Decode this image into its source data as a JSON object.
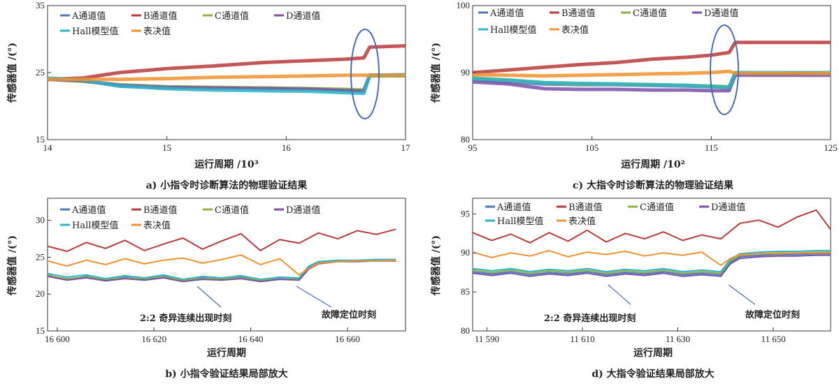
{
  "colors": {
    "A": "#4a78b8",
    "B": "#b93a3a",
    "C": "#8fb13e",
    "D": "#7b4fa8",
    "hall": "#2ab5c9",
    "vote": "#f0922e",
    "ellipse": "#4a6cb0"
  },
  "legend_labels": {
    "A": "A通道值",
    "B": "B通道值",
    "C": "C通道值",
    "D": "D通道值",
    "hall": "Hall模型值",
    "vote": "表决值"
  },
  "chart_data": [
    {
      "id": "a",
      "type": "line",
      "caption": "a)   小指令时诊断算法的物理验证结果",
      "ylabel": "传感器值 /(°)",
      "xlabel": "运行周期 /10³",
      "xlim": [
        14,
        17
      ],
      "ylim": [
        15,
        35
      ],
      "xticks": [
        "14",
        "15",
        "16",
        "17"
      ],
      "yticks": [
        "15",
        "25",
        "35"
      ],
      "ellipse": true,
      "series": [
        {
          "key": "B",
          "x": [
            14.0,
            14.3,
            14.6,
            15.0,
            15.4,
            15.8,
            16.2,
            16.5,
            16.65,
            16.7,
            17.0
          ],
          "y": [
            24.0,
            24.2,
            25.0,
            25.6,
            26.0,
            26.5,
            26.8,
            27.0,
            27.2,
            28.8,
            29.0
          ]
        },
        {
          "key": "A",
          "x": [
            14.0,
            14.3,
            14.6,
            15.0,
            15.4,
            15.8,
            16.2,
            16.5,
            16.65,
            16.7,
            17.0
          ],
          "y": [
            24.0,
            23.8,
            23.0,
            22.8,
            22.7,
            22.7,
            22.6,
            22.4,
            22.3,
            24.6,
            24.6
          ]
        },
        {
          "key": "C",
          "x": [
            14.0,
            14.3,
            14.6,
            15.0,
            15.4,
            15.8,
            16.2,
            16.5,
            16.65,
            16.7,
            17.0
          ],
          "y": [
            24.0,
            23.7,
            23.2,
            22.9,
            22.8,
            22.7,
            22.6,
            22.5,
            22.4,
            24.5,
            24.5
          ]
        },
        {
          "key": "D",
          "x": [
            14.0,
            14.3,
            14.6,
            15.0,
            15.4,
            15.8,
            16.2,
            16.5,
            16.65,
            16.7,
            17.0
          ],
          "y": [
            24.0,
            23.8,
            23.1,
            22.8,
            22.7,
            22.6,
            22.5,
            22.3,
            22.2,
            24.6,
            24.6
          ]
        },
        {
          "key": "hall",
          "x": [
            14.0,
            14.3,
            14.6,
            15.0,
            15.4,
            15.8,
            16.2,
            16.5,
            16.65,
            16.7,
            17.0
          ],
          "y": [
            24.2,
            23.9,
            23.0,
            22.6,
            22.4,
            22.3,
            22.2,
            22.0,
            21.9,
            24.6,
            24.7
          ]
        },
        {
          "key": "vote",
          "x": [
            14.0,
            14.3,
            14.6,
            15.0,
            15.4,
            15.8,
            16.2,
            16.5,
            16.65,
            16.7,
            17.0
          ],
          "y": [
            24.0,
            24.0,
            24.0,
            24.1,
            24.3,
            24.4,
            24.5,
            24.6,
            24.6,
            24.6,
            24.6
          ]
        }
      ]
    },
    {
      "id": "c",
      "type": "line",
      "caption": "c)   大指令时诊断算法的物理验证结果",
      "ylabel": "传感器值 /(°)",
      "xlabel": "运行周期 /10²",
      "xlim": [
        95,
        125
      ],
      "ylim": [
        80,
        100
      ],
      "xticks": [
        "95",
        "105",
        "115",
        "125"
      ],
      "yticks": [
        "80",
        "90",
        "100"
      ],
      "ellipse": true,
      "series": [
        {
          "key": "B",
          "x": [
            95,
            98,
            101,
            104,
            107,
            110,
            113,
            115,
            116.5,
            117,
            125
          ],
          "y": [
            90.0,
            90.4,
            90.8,
            91.2,
            91.5,
            92.0,
            92.3,
            92.6,
            93.0,
            94.5,
            94.5
          ]
        },
        {
          "key": "A",
          "x": [
            95,
            98,
            101,
            104,
            107,
            110,
            113,
            115,
            116.5,
            117,
            125
          ],
          "y": [
            89.0,
            88.6,
            88.3,
            88.2,
            88.2,
            88.1,
            88.0,
            87.9,
            87.8,
            89.8,
            89.9
          ]
        },
        {
          "key": "C",
          "x": [
            95,
            98,
            101,
            104,
            107,
            110,
            113,
            115,
            116.5,
            117,
            125
          ],
          "y": [
            89.2,
            88.9,
            88.5,
            88.3,
            88.3,
            88.2,
            88.1,
            88.0,
            87.9,
            89.9,
            89.9
          ]
        },
        {
          "key": "D",
          "x": [
            95,
            98,
            101,
            104,
            107,
            110,
            113,
            115,
            116.5,
            117,
            125
          ],
          "y": [
            88.6,
            88.3,
            87.6,
            87.5,
            87.5,
            87.4,
            87.4,
            87.3,
            87.3,
            89.6,
            89.6
          ]
        },
        {
          "key": "hall",
          "x": [
            95,
            98,
            101,
            104,
            107,
            110,
            113,
            115,
            116.5,
            117,
            125
          ],
          "y": [
            89.1,
            88.9,
            88.5,
            88.4,
            88.3,
            88.2,
            88.1,
            87.9,
            87.8,
            90.0,
            90.0
          ]
        },
        {
          "key": "vote",
          "x": [
            95,
            98,
            101,
            104,
            107,
            110,
            113,
            115,
            116.5,
            117,
            125
          ],
          "y": [
            89.7,
            89.6,
            89.5,
            89.6,
            89.7,
            89.8,
            89.9,
            90.0,
            90.2,
            89.9,
            89.9
          ]
        }
      ]
    },
    {
      "id": "b",
      "type": "line",
      "caption": "b)   小指令验证结果局部放大",
      "ylabel": "传感器值 /(°)",
      "xlabel": "运行周期",
      "xlim": [
        16598,
        16672
      ],
      "ylim": [
        15,
        33
      ],
      "xticks": [
        "16 600",
        "16 620",
        "16 640",
        "16 660"
      ],
      "xtick_values": [
        16600,
        16620,
        16640,
        16660
      ],
      "yticks": [
        "15",
        "20",
        "25",
        "30"
      ],
      "annotations": [
        "2:2 奇异连续出现时刻",
        "故障定位时刻"
      ],
      "series": [
        {
          "key": "B",
          "x": [
            16598,
            16602,
            16606,
            16610,
            16614,
            16618,
            16622,
            16626,
            16630,
            16634,
            16638,
            16642,
            16646,
            16650,
            16654,
            16658,
            16662,
            16666,
            16670
          ],
          "y": [
            26.5,
            25.8,
            27.0,
            26.2,
            27.3,
            25.9,
            26.8,
            27.6,
            26.1,
            27.2,
            28.2,
            25.9,
            27.4,
            26.9,
            28.3,
            27.5,
            28.6,
            28.1,
            28.8
          ]
        },
        {
          "key": "A",
          "x": [
            16598,
            16602,
            16606,
            16610,
            16614,
            16618,
            16622,
            16626,
            16630,
            16634,
            16638,
            16642,
            16646,
            16650,
            16652,
            16654,
            16658,
            16662,
            16666,
            16670
          ],
          "y": [
            22.6,
            22.0,
            22.4,
            21.9,
            22.3,
            22.0,
            22.4,
            21.8,
            22.2,
            22.0,
            22.3,
            21.8,
            22.1,
            22.0,
            23.6,
            24.2,
            24.4,
            24.5,
            24.5,
            24.6
          ]
        },
        {
          "key": "C",
          "x": [
            16598,
            16602,
            16606,
            16610,
            16614,
            16618,
            16622,
            16626,
            16630,
            16634,
            16638,
            16642,
            16646,
            16650,
            16652,
            16654,
            16658,
            16662,
            16666,
            16670
          ],
          "y": [
            22.5,
            22.1,
            22.3,
            22.0,
            22.2,
            22.1,
            22.3,
            21.9,
            22.1,
            22.1,
            22.2,
            21.9,
            22.0,
            22.1,
            23.5,
            24.3,
            24.5,
            24.5,
            24.6,
            24.6
          ]
        },
        {
          "key": "D",
          "x": [
            16598,
            16602,
            16606,
            16610,
            16614,
            16618,
            16622,
            16626,
            16630,
            16634,
            16638,
            16642,
            16646,
            16650,
            16652,
            16654,
            16658,
            16662,
            16666,
            16670
          ],
          "y": [
            22.4,
            21.9,
            22.2,
            21.8,
            22.1,
            21.9,
            22.2,
            21.7,
            22.0,
            21.9,
            22.1,
            21.7,
            22.0,
            21.9,
            23.4,
            24.1,
            24.4,
            24.4,
            24.5,
            24.5
          ]
        },
        {
          "key": "hall",
          "x": [
            16598,
            16602,
            16606,
            16610,
            16614,
            16618,
            16622,
            16626,
            16630,
            16634,
            16638,
            16642,
            16646,
            16650,
            16652,
            16654,
            16658,
            16662,
            16666,
            16670
          ],
          "y": [
            22.8,
            22.3,
            22.6,
            22.1,
            22.5,
            22.2,
            22.6,
            22.0,
            22.4,
            22.2,
            22.5,
            22.0,
            22.3,
            22.2,
            23.8,
            24.4,
            24.6,
            24.6,
            24.7,
            24.7
          ]
        },
        {
          "key": "vote",
          "x": [
            16598,
            16602,
            16606,
            16610,
            16614,
            16618,
            16622,
            16626,
            16630,
            16634,
            16638,
            16642,
            16646,
            16650,
            16652,
            16654,
            16658,
            16662,
            16666,
            16670
          ],
          "y": [
            24.5,
            23.8,
            24.6,
            24.0,
            24.8,
            24.1,
            24.6,
            24.9,
            24.2,
            24.7,
            25.3,
            24.0,
            24.8,
            22.6,
            23.5,
            24.2,
            24.4,
            24.5,
            24.5,
            24.6
          ]
        }
      ]
    },
    {
      "id": "d",
      "type": "line",
      "caption": "d)   大指令验证结果局部放大",
      "ylabel": "传感器值 /(°)",
      "xlabel": "运行周期",
      "xlim": [
        11587,
        11662
      ],
      "ylim": [
        80,
        97
      ],
      "xticks": [
        "11 590",
        "11 610",
        "11 630",
        "11 650"
      ],
      "xtick_values": [
        11590,
        11610,
        11630,
        11650
      ],
      "yticks": [
        "80",
        "85",
        "90",
        "95"
      ],
      "annotations": [
        "2:2 奇异连续出现时刻",
        "故障定位时刻"
      ],
      "series": [
        {
          "key": "B",
          "x": [
            11587,
            11591,
            11595,
            11599,
            11603,
            11607,
            11611,
            11615,
            11619,
            11623,
            11627,
            11631,
            11635,
            11639,
            11643,
            11647,
            11651,
            11655,
            11659,
            11662
          ],
          "y": [
            92.6,
            91.6,
            92.4,
            91.3,
            92.6,
            91.5,
            92.9,
            91.4,
            92.5,
            91.8,
            92.7,
            91.6,
            92.3,
            91.8,
            93.8,
            94.2,
            93.3,
            94.6,
            95.5,
            93.0
          ]
        },
        {
          "key": "A",
          "x": [
            11587,
            11591,
            11595,
            11599,
            11603,
            11607,
            11611,
            11615,
            11619,
            11623,
            11627,
            11631,
            11635,
            11639,
            11641,
            11643,
            11647,
            11651,
            11655,
            11659,
            11662
          ],
          "y": [
            87.6,
            87.3,
            87.6,
            87.2,
            87.5,
            87.3,
            87.6,
            87.2,
            87.5,
            87.3,
            87.6,
            87.2,
            87.4,
            87.2,
            88.8,
            89.5,
            89.7,
            89.8,
            89.8,
            89.9,
            89.9
          ]
        },
        {
          "key": "C",
          "x": [
            11587,
            11591,
            11595,
            11599,
            11603,
            11607,
            11611,
            11615,
            11619,
            11623,
            11627,
            11631,
            11635,
            11639,
            11641,
            11643,
            11647,
            11651,
            11655,
            11659,
            11662
          ],
          "y": [
            87.8,
            87.5,
            87.8,
            87.4,
            87.7,
            87.5,
            87.8,
            87.4,
            87.7,
            87.5,
            87.8,
            87.4,
            87.6,
            87.4,
            89.0,
            89.7,
            89.9,
            90.0,
            90.0,
            90.1,
            90.1
          ]
        },
        {
          "key": "D",
          "x": [
            11587,
            11591,
            11595,
            11599,
            11603,
            11607,
            11611,
            11615,
            11619,
            11623,
            11627,
            11631,
            11635,
            11639,
            11641,
            11643,
            11647,
            11651,
            11655,
            11659,
            11662
          ],
          "y": [
            87.4,
            87.1,
            87.4,
            87.0,
            87.3,
            87.1,
            87.4,
            87.0,
            87.3,
            87.1,
            87.4,
            87.0,
            87.2,
            87.0,
            88.6,
            89.3,
            89.5,
            89.6,
            89.6,
            89.7,
            89.7
          ]
        },
        {
          "key": "hall",
          "x": [
            11587,
            11591,
            11595,
            11599,
            11603,
            11607,
            11611,
            11615,
            11619,
            11623,
            11627,
            11631,
            11635,
            11639,
            11641,
            11643,
            11647,
            11651,
            11655,
            11659,
            11662
          ],
          "y": [
            88.0,
            87.7,
            88.0,
            87.6,
            87.9,
            87.7,
            88.0,
            87.6,
            87.9,
            87.7,
            88.0,
            87.6,
            87.8,
            87.6,
            89.2,
            89.9,
            90.1,
            90.2,
            90.2,
            90.3,
            90.3
          ]
        },
        {
          "key": "vote",
          "x": [
            11587,
            11591,
            11595,
            11599,
            11603,
            11607,
            11611,
            11615,
            11619,
            11623,
            11627,
            11631,
            11635,
            11639,
            11641,
            11643,
            11647,
            11651,
            11655,
            11659,
            11662
          ],
          "y": [
            90.1,
            89.4,
            90.0,
            89.6,
            90.3,
            89.5,
            90.1,
            89.8,
            90.2,
            89.6,
            90.0,
            89.7,
            90.1,
            88.4,
            89.3,
            89.8,
            89.9,
            89.9,
            90.0,
            90.0,
            90.0
          ]
        }
      ]
    }
  ]
}
